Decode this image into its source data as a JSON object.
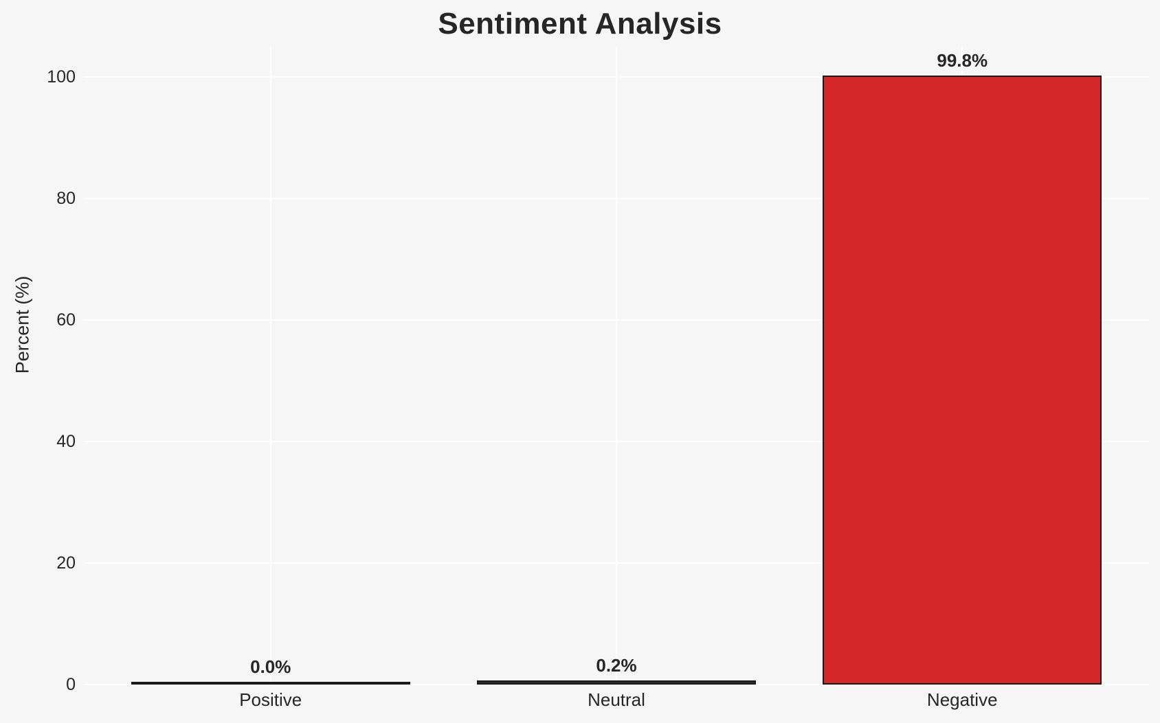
{
  "chart_data": {
    "type": "bar",
    "title": "Sentiment Analysis",
    "xlabel": "",
    "ylabel": "Percent (%)",
    "categories": [
      "Positive",
      "Neutral",
      "Negative"
    ],
    "values": [
      0.0,
      0.2,
      99.8
    ],
    "bar_value_labels": [
      "0.0%",
      "0.2%",
      "99.8%"
    ],
    "bar_colors": [
      "#2b2b2b",
      "#2b2b2b",
      "#d62728"
    ],
    "bar_edge_color": "#1a1a1a",
    "yticks": [
      0,
      20,
      40,
      60,
      80,
      100
    ],
    "ylim": [
      0,
      105
    ],
    "grid": true,
    "gridline_color": "#ffffff",
    "background_color": "#f6f6f6",
    "text_color": "#262626",
    "legend": "none"
  }
}
